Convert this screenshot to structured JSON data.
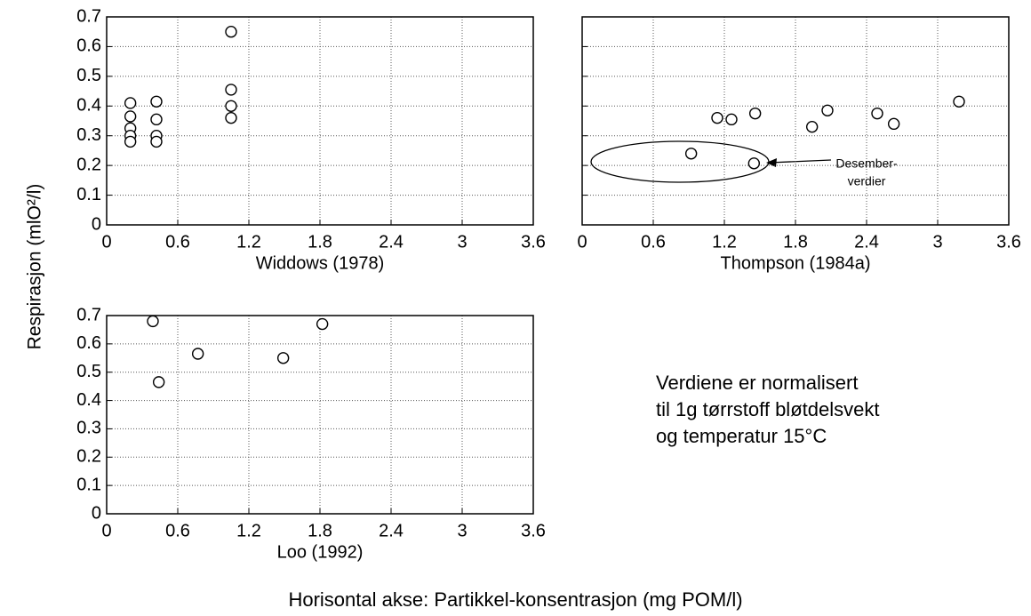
{
  "ylabel": "Respirasjon (mlO²/l)",
  "footer": "Horisontal akse: Partikkel-konsentrasjon (mg POM/l)",
  "note": [
    "Verdiene er normalisert",
    "til 1g tørrstoff bløtdelsvekt",
    "og temperatur 15°C"
  ],
  "chart_data": [
    {
      "type": "scatter",
      "xlabel": "Widdows (1978)",
      "color": "#000000",
      "grid": true,
      "ytick_labels": true,
      "xlim": [
        0,
        3.6
      ],
      "ylim": [
        0,
        0.7
      ],
      "xticks": [
        0,
        0.6,
        1.2,
        1.8,
        2.4,
        3,
        3.6
      ],
      "yticks": [
        0,
        0.1,
        0.2,
        0.3,
        0.4,
        0.5,
        0.6,
        0.7
      ],
      "x": [
        0.2,
        0.2,
        0.2,
        0.2,
        0.2,
        0.42,
        0.42,
        0.42,
        0.42,
        1.05,
        1.05,
        1.05,
        1.05
      ],
      "values": [
        0.41,
        0.365,
        0.325,
        0.3,
        0.28,
        0.415,
        0.355,
        0.3,
        0.28,
        0.65,
        0.455,
        0.4,
        0.36
      ]
    },
    {
      "type": "scatter",
      "xlabel": "Thompson (1984a)",
      "color": "#000000",
      "grid": true,
      "ytick_labels": false,
      "xlim": [
        0,
        3.6
      ],
      "ylim": [
        0,
        0.7
      ],
      "xticks": [
        0,
        0.6,
        1.2,
        1.8,
        2.4,
        3,
        3.6
      ],
      "yticks": [
        0,
        0.1,
        0.2,
        0.3,
        0.4,
        0.5,
        0.6,
        0.7
      ],
      "x": [
        0.92,
        1.45,
        1.14,
        1.26,
        1.46,
        1.94,
        2.07,
        2.49,
        2.63,
        3.18
      ],
      "values": [
        0.24,
        0.207,
        0.36,
        0.355,
        0.375,
        0.33,
        0.385,
        0.375,
        0.34,
        0.415
      ],
      "annotation": [
        "Desember-",
        "verdier"
      ]
    },
    {
      "type": "scatter",
      "xlabel": "Loo (1992)",
      "color": "#000000",
      "grid": true,
      "ytick_labels": true,
      "xlim": [
        0,
        3.6
      ],
      "ylim": [
        0,
        0.7
      ],
      "xticks": [
        0,
        0.6,
        1.2,
        1.8,
        2.4,
        3,
        3.6
      ],
      "yticks": [
        0,
        0.1,
        0.2,
        0.3,
        0.4,
        0.5,
        0.6,
        0.7
      ],
      "x": [
        0.39,
        0.44,
        0.77,
        1.49,
        1.82
      ],
      "values": [
        0.68,
        0.465,
        0.565,
        0.55,
        0.67
      ]
    }
  ]
}
